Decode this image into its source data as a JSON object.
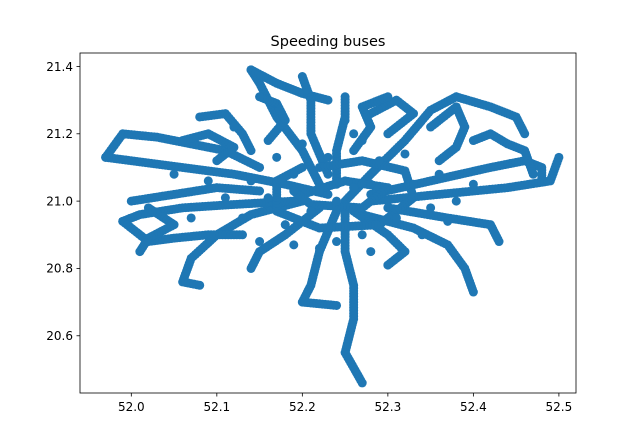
{
  "chart_data": {
    "type": "scatter",
    "title": "Speeding buses",
    "xlabel": "",
    "ylabel": "",
    "xlim": [
      51.94,
      52.52
    ],
    "ylim": [
      20.43,
      21.44
    ],
    "x_ticks": [
      52.0,
      52.1,
      52.2,
      52.3,
      52.4,
      52.5
    ],
    "x_tick_labels": [
      "52.0",
      "52.1",
      "52.2",
      "52.3",
      "52.4",
      "52.5"
    ],
    "y_ticks": [
      20.6,
      20.8,
      21.0,
      21.2,
      21.4
    ],
    "y_tick_labels": [
      "20.6",
      "20.8",
      "21.0",
      "21.2",
      "21.4"
    ],
    "grid": false,
    "marker_color": "#1f77b4",
    "paths": [
      [
        [
          52.23,
          21.02
        ],
        [
          52.18,
          21.05
        ],
        [
          52.12,
          21.08
        ],
        [
          52.06,
          21.1
        ],
        [
          52.0,
          21.12
        ],
        [
          51.97,
          21.13
        ]
      ],
      [
        [
          51.97,
          21.13
        ],
        [
          51.99,
          21.2
        ],
        [
          52.03,
          21.19
        ],
        [
          52.07,
          21.17
        ],
        [
          52.11,
          21.15
        ],
        [
          52.15,
          21.1
        ]
      ],
      [
        [
          52.22,
          21.05
        ],
        [
          52.2,
          21.15
        ],
        [
          52.17,
          21.25
        ],
        [
          52.15,
          21.35
        ],
        [
          52.14,
          21.39
        ]
      ],
      [
        [
          52.14,
          21.39
        ],
        [
          52.17,
          21.35
        ],
        [
          52.2,
          21.32
        ],
        [
          52.23,
          21.3
        ]
      ],
      [
        [
          52.24,
          21.05
        ],
        [
          52.24,
          21.15
        ],
        [
          52.25,
          21.25
        ],
        [
          52.25,
          21.31
        ]
      ],
      [
        [
          52.23,
          21.08
        ],
        [
          52.21,
          21.2
        ],
        [
          52.21,
          21.3
        ],
        [
          52.2,
          21.37
        ]
      ],
      [
        [
          52.25,
          21.0
        ],
        [
          52.28,
          21.08
        ],
        [
          52.32,
          21.18
        ],
        [
          52.35,
          21.27
        ],
        [
          52.38,
          21.31
        ]
      ],
      [
        [
          52.38,
          21.31
        ],
        [
          52.42,
          21.28
        ],
        [
          52.45,
          21.25
        ],
        [
          52.46,
          21.2
        ]
      ],
      [
        [
          52.28,
          21.02
        ],
        [
          52.35,
          21.06
        ],
        [
          52.42,
          21.1
        ],
        [
          52.46,
          21.12
        ],
        [
          52.48,
          21.1
        ],
        [
          52.48,
          21.06
        ]
      ],
      [
        [
          52.28,
          21.0
        ],
        [
          52.36,
          21.02
        ],
        [
          52.44,
          21.04
        ],
        [
          52.49,
          21.06
        ],
        [
          52.5,
          21.13
        ]
      ],
      [
        [
          52.3,
          20.98
        ],
        [
          52.37,
          20.95
        ],
        [
          52.42,
          20.93
        ],
        [
          52.43,
          20.88
        ]
      ],
      [
        [
          52.27,
          20.96
        ],
        [
          52.33,
          20.92
        ],
        [
          52.37,
          20.87
        ],
        [
          52.39,
          20.8
        ],
        [
          52.4,
          20.73
        ]
      ],
      [
        [
          52.26,
          20.97
        ],
        [
          52.3,
          20.9
        ],
        [
          52.32,
          20.85
        ],
        [
          52.3,
          20.81
        ]
      ],
      [
        [
          52.25,
          20.98
        ],
        [
          52.25,
          20.85
        ],
        [
          52.26,
          20.75
        ],
        [
          52.26,
          20.65
        ],
        [
          52.25,
          20.55
        ],
        [
          52.27,
          20.46
        ]
      ],
      [
        [
          52.24,
          20.97
        ],
        [
          52.22,
          20.85
        ],
        [
          52.21,
          20.75
        ],
        [
          52.2,
          20.7
        ],
        [
          52.24,
          20.69
        ]
      ],
      [
        [
          52.22,
          20.98
        ],
        [
          52.18,
          20.9
        ],
        [
          52.15,
          20.85
        ],
        [
          52.14,
          20.8
        ]
      ],
      [
        [
          52.2,
          21.0
        ],
        [
          52.14,
          20.96
        ],
        [
          52.1,
          20.9
        ],
        [
          52.07,
          20.83
        ],
        [
          52.06,
          20.76
        ],
        [
          52.08,
          20.75
        ]
      ],
      [
        [
          52.19,
          21.0
        ],
        [
          52.12,
          20.99
        ],
        [
          52.06,
          20.98
        ],
        [
          52.01,
          20.96
        ],
        [
          51.99,
          20.94
        ]
      ],
      [
        [
          51.99,
          20.94
        ],
        [
          52.02,
          20.88
        ],
        [
          52.05,
          20.89
        ],
        [
          52.09,
          20.9
        ],
        [
          52.13,
          20.9
        ]
      ],
      [
        [
          52.0,
          21.0
        ],
        [
          52.05,
          21.02
        ],
        [
          52.1,
          21.04
        ],
        [
          52.15,
          21.03
        ]
      ],
      [
        [
          52.02,
          20.98
        ],
        [
          52.05,
          20.93
        ],
        [
          52.02,
          20.89
        ],
        [
          52.01,
          20.85
        ]
      ],
      [
        [
          52.08,
          21.25
        ],
        [
          52.11,
          21.26
        ],
        [
          52.13,
          21.2
        ],
        [
          52.14,
          21.15
        ]
      ],
      [
        [
          52.3,
          21.2
        ],
        [
          52.33,
          21.26
        ],
        [
          52.31,
          21.3
        ],
        [
          52.28,
          21.26
        ]
      ],
      [
        [
          52.35,
          21.22
        ],
        [
          52.38,
          21.28
        ],
        [
          52.39,
          21.22
        ],
        [
          52.38,
          21.16
        ],
        [
          52.36,
          21.12
        ]
      ],
      [
        [
          52.4,
          21.18
        ],
        [
          52.42,
          21.2
        ],
        [
          52.44,
          21.17
        ],
        [
          52.46,
          21.15
        ],
        [
          52.47,
          21.08
        ]
      ],
      [
        [
          52.2,
          21.02
        ],
        [
          52.25,
          21.06
        ],
        [
          52.3,
          21.04
        ],
        [
          52.27,
          20.98
        ],
        [
          52.21,
          20.99
        ],
        [
          52.19,
          21.03
        ]
      ],
      [
        [
          52.22,
          21.1
        ],
        [
          52.27,
          21.12
        ],
        [
          52.32,
          21.09
        ],
        [
          52.33,
          21.01
        ],
        [
          52.29,
          20.93
        ],
        [
          52.22,
          20.92
        ],
        [
          52.17,
          20.97
        ],
        [
          52.17,
          21.06
        ],
        [
          52.2,
          21.1
        ]
      ],
      [
        [
          52.26,
          21.15
        ],
        [
          52.28,
          21.22
        ],
        [
          52.27,
          21.28
        ],
        [
          52.3,
          21.31
        ]
      ],
      [
        [
          52.16,
          21.18
        ],
        [
          52.18,
          21.24
        ],
        [
          52.17,
          21.29
        ],
        [
          52.15,
          21.31
        ]
      ],
      [
        [
          52.1,
          21.12
        ],
        [
          52.12,
          21.16
        ],
        [
          52.09,
          21.2
        ],
        [
          52.06,
          21.18
        ]
      ]
    ],
    "points": [
      [
        52.24,
        21.0
      ],
      [
        52.22,
        21.03
      ],
      [
        52.26,
        21.04
      ],
      [
        52.25,
        20.96
      ],
      [
        52.21,
        20.97
      ],
      [
        52.28,
        21.05
      ],
      [
        52.19,
        21.08
      ],
      [
        52.3,
        21.0
      ],
      [
        52.23,
        21.13
      ],
      [
        52.27,
        20.9
      ],
      [
        52.18,
        20.93
      ],
      [
        52.31,
        20.95
      ],
      [
        52.16,
        21.01
      ],
      [
        52.29,
        21.12
      ],
      [
        52.24,
        20.88
      ],
      [
        52.33,
        21.05
      ],
      [
        52.2,
        21.17
      ],
      [
        52.26,
        21.2
      ],
      [
        52.14,
        21.06
      ],
      [
        52.35,
        20.98
      ],
      [
        52.22,
        20.86
      ],
      [
        52.17,
        21.13
      ],
      [
        52.32,
        21.14
      ],
      [
        52.13,
        20.95
      ],
      [
        52.36,
        21.08
      ],
      [
        52.25,
        21.24
      ],
      [
        52.11,
        21.01
      ],
      [
        52.34,
        20.9
      ],
      [
        52.19,
        20.87
      ],
      [
        52.28,
        20.85
      ],
      [
        52.09,
        21.06
      ],
      [
        52.38,
        21.0
      ],
      [
        52.07,
        20.95
      ],
      [
        52.4,
        21.05
      ],
      [
        52.05,
        21.08
      ],
      [
        52.12,
        21.22
      ],
      [
        52.37,
        20.94
      ],
      [
        52.27,
        21.18
      ],
      [
        52.21,
        21.21
      ],
      [
        52.15,
        20.88
      ]
    ]
  }
}
